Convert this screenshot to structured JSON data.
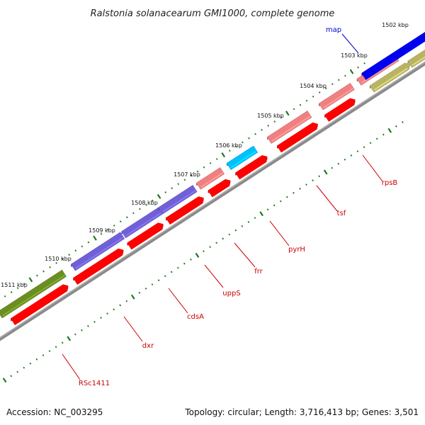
{
  "title": "Ralstonia solanacearum GMI1000, complete genome",
  "footer": {
    "accession": "Accession: NC_003295",
    "summary": "Topology: circular; Length: 3,716,413 bp; Genes: 3,501"
  },
  "ticks": [
    {
      "label": "1502 kbp"
    },
    {
      "label": "1503 kbp"
    },
    {
      "label": "1504 kbp"
    },
    {
      "label": "1505 kbp"
    },
    {
      "label": "1506 kbp"
    },
    {
      "label": "1507 kbp"
    },
    {
      "label": "1508 kbp"
    },
    {
      "label": "1509 kbp"
    },
    {
      "label": "1510 kbp"
    },
    {
      "label": "1511 kbp"
    }
  ],
  "genes": [
    {
      "name": "map"
    },
    {
      "name": "rpsB"
    },
    {
      "name": "tsf"
    },
    {
      "name": "pyrH"
    },
    {
      "name": "frr"
    },
    {
      "name": "uppS"
    },
    {
      "name": "cdsA"
    },
    {
      "name": "dxr"
    },
    {
      "name": "RSc1411"
    }
  ],
  "colors": {
    "cds": "#ff0000",
    "cds_light": "#f08080",
    "blue": "#0000ee",
    "light_blue": "#00bfff",
    "purple": "#7060d8",
    "olive_green": "#6b8e23",
    "khaki": "#b8b464",
    "backbone": "#808080",
    "tick_green": "#1a7a1a",
    "label_red": "#cc0000",
    "label_blue": "#0000cc"
  }
}
